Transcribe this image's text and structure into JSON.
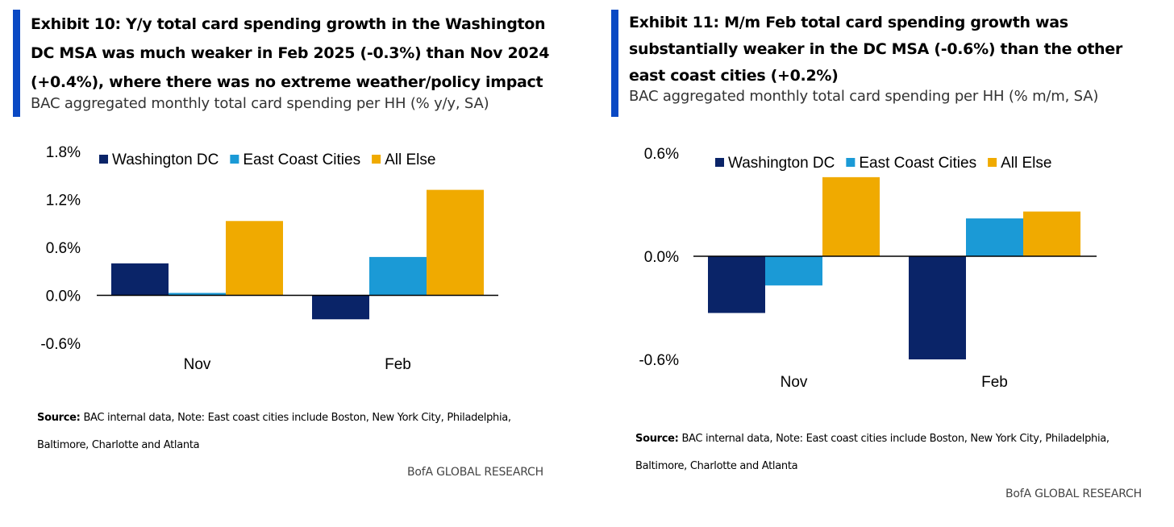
{
  "exhibits": [
    {
      "title": "Exhibit 10: Y/y total card spending growth in the Washington DC MSA was much weaker in Feb 2025 (-0.3%) than Nov 2024 (+0.4%), where there was no extreme weather/policy impact",
      "subtitle": "BAC aggregated monthly total card spending per HH (% y/y, SA)",
      "source_label": "Source:",
      "source_text": "BAC internal data, Note: East coast cities include Boston, New York City, Philadelphia, Baltimore, Charlotte and Atlanta",
      "footer": "BofA GLOBAL RESEARCH"
    },
    {
      "title": "Exhibit 11: M/m Feb total card spending growth was substantially weaker in the DC MSA (-0.6%) than the other east coast cities (+0.2%)",
      "subtitle": "BAC aggregated monthly total card spending per HH (% m/m, SA)",
      "source_label": "Source:",
      "source_text": "BAC internal data, Note: East coast cities include Boston, New York City, Philadelphia, Baltimore, Charlotte and Atlanta",
      "footer": "BofA GLOBAL RESEARCH"
    }
  ],
  "colors": {
    "washington_dc": "#0a2468",
    "east_coast": "#1b9ad6",
    "all_else": "#f0aa00",
    "accent": "#0a49c4"
  },
  "chart_data": [
    {
      "type": "bar",
      "categories": [
        "Nov",
        "Feb"
      ],
      "series": [
        {
          "name": "Washington DC",
          "values": [
            0.4,
            -0.3
          ]
        },
        {
          "name": "East Coast Cities",
          "values": [
            0.03,
            0.48
          ]
        },
        {
          "name": "All Else",
          "values": [
            0.93,
            1.32
          ]
        }
      ],
      "ylim": [
        -0.6,
        1.8
      ],
      "yticks": [
        -0.6,
        0.0,
        0.6,
        1.2,
        1.8
      ],
      "ytick_labels": [
        "-0.6%",
        "0.0%",
        "0.6%",
        "1.2%",
        "1.8%"
      ],
      "legend_position": "top",
      "grid": false
    },
    {
      "type": "bar",
      "categories": [
        "Nov",
        "Feb"
      ],
      "series": [
        {
          "name": "Washington DC",
          "values": [
            -0.33,
            -0.6
          ]
        },
        {
          "name": "East Coast Cities",
          "values": [
            -0.17,
            0.22
          ]
        },
        {
          "name": "All Else",
          "values": [
            0.46,
            0.26
          ]
        }
      ],
      "ylim": [
        -0.6,
        0.6
      ],
      "yticks": [
        -0.6,
        0.0,
        0.6
      ],
      "ytick_labels": [
        "-0.6%",
        "0.0%",
        "0.6%"
      ],
      "legend_position": "top",
      "grid": false
    }
  ]
}
